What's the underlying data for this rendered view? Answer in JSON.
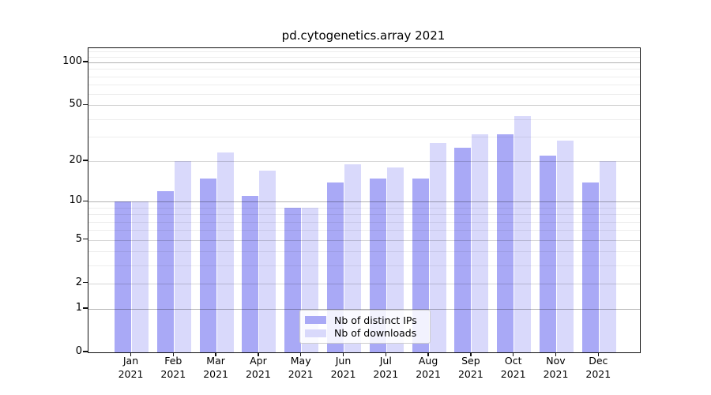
{
  "title": "pd.cytogenetics.array 2021",
  "chart_data": {
    "type": "bar",
    "title": "pd.cytogenetics.array 2021",
    "xlabel": "",
    "ylabel": "",
    "categories": [
      "Jan",
      "Feb",
      "Mar",
      "Apr",
      "May",
      "Jun",
      "Jul",
      "Aug",
      "Sep",
      "Oct",
      "Nov",
      "Dec"
    ],
    "year_label": "2021",
    "series": [
      {
        "name": "Nb of distinct IPs",
        "color": "#a9a9f6",
        "values": [
          10,
          12,
          15,
          11,
          9,
          14,
          15,
          15,
          25,
          31,
          22,
          14
        ]
      },
      {
        "name": "Nb of downloads",
        "color": "#d9d9fb",
        "values": [
          10,
          20,
          23,
          17,
          9,
          19,
          18,
          27,
          31,
          42,
          28,
          20
        ]
      }
    ],
    "yscale": "log1p",
    "ylim": [
      0,
      126
    ],
    "yticks_labeled": [
      0,
      1,
      2,
      5,
      10,
      20,
      50,
      100
    ],
    "ytick_labels": [
      "0",
      "1",
      "2",
      "5",
      "10",
      "20",
      "50",
      "100"
    ],
    "yticks_decade": [
      1,
      10,
      100
    ],
    "yticks_minor": [
      3,
      4,
      6,
      7,
      8,
      9,
      30,
      40,
      60,
      70,
      80,
      90,
      110,
      120
    ],
    "grid": true,
    "legend_position": "bottom-center"
  },
  "legend": {
    "items": [
      {
        "label": "Nb of distinct IPs",
        "color": "#a9a9f6"
      },
      {
        "label": "Nb of downloads",
        "color": "#d9d9fb"
      }
    ]
  }
}
